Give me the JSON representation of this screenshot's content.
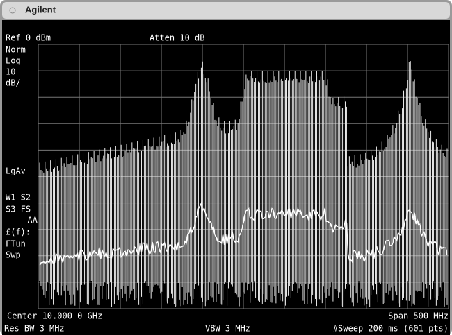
{
  "header": {
    "title": "Agilent"
  },
  "top": {
    "ref": "Ref 0 dBm",
    "atten": "Atten 10 dB"
  },
  "left_labels": [
    "Norm",
    "Log",
    "10",
    "dB/",
    "LgAv",
    "W1  S2",
    "S3  FS",
    "AA",
    "£(f):",
    "FTun",
    "Swp"
  ],
  "bottom": {
    "center": "Center 10.000 0 GHz",
    "span": "Span 500 MHz",
    "rbw": "Res BW 3 MHz",
    "vbw": "VBW 3 MHz",
    "sweep": "#Sweep 200 ms (601 pts)"
  }
}
